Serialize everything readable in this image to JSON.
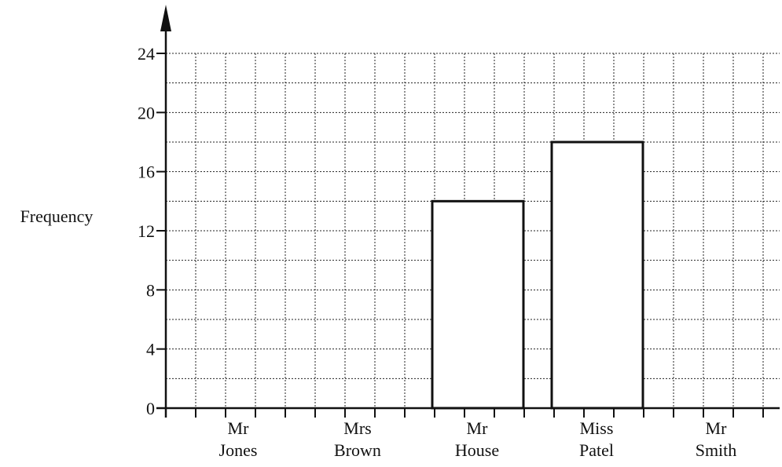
{
  "chart_data": {
    "type": "bar",
    "ylabel": "Frequency",
    "xlabel": "",
    "title": "",
    "categories": [
      [
        "Mr",
        "Jones"
      ],
      [
        "Mrs",
        "Brown"
      ],
      [
        "Mr",
        "House"
      ],
      [
        "Miss",
        "Patel"
      ],
      [
        "Mr",
        "Smith"
      ]
    ],
    "values": [
      null,
      null,
      14,
      18,
      null
    ],
    "ylim": [
      0,
      24
    ],
    "yticks": [
      0,
      4,
      8,
      12,
      16,
      20,
      24
    ],
    "grid": true,
    "grid_style": "dotted",
    "bar_fill": "#ffffff",
    "bar_stroke": "#111111"
  }
}
